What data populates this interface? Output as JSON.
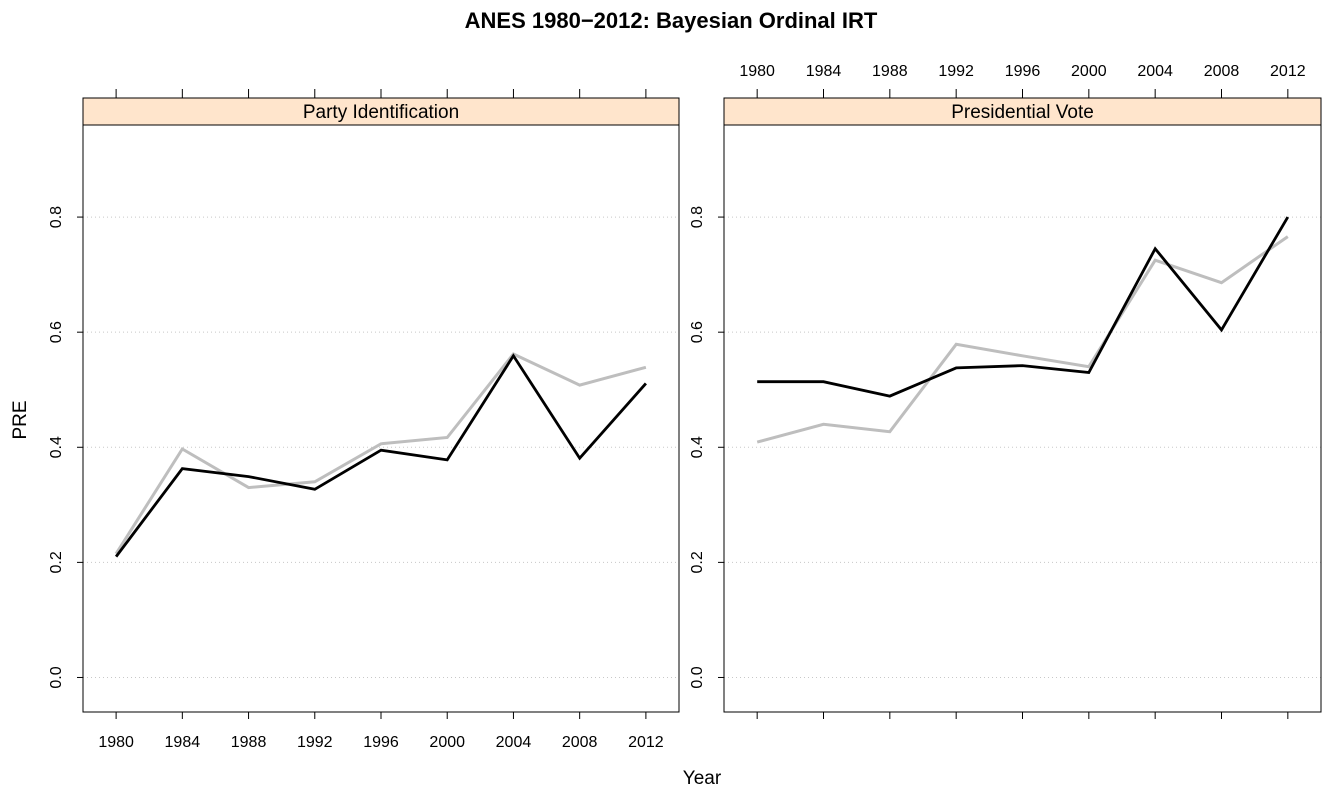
{
  "chart_data": {
    "type": "line",
    "title": "ANES 1980−2012: Bayesian Ordinal IRT",
    "xlabel": "Year",
    "ylabel": "PRE",
    "x": [
      1980,
      1984,
      1988,
      1992,
      1996,
      2000,
      2004,
      2008,
      2012
    ],
    "x_tick_labels": [
      "1980",
      "1984",
      "1988",
      "1992",
      "1996",
      "2000",
      "2004",
      "2008",
      "2012"
    ],
    "y_tick_labels": [
      "0.0",
      "0.2",
      "0.4",
      "0.6",
      "0.8"
    ],
    "yticks": [
      0.0,
      0.2,
      0.4,
      0.6,
      0.8
    ],
    "ylim": [
      -0.06,
      0.96
    ],
    "xlim": [
      1978,
      2014
    ],
    "grid": "horizontal dotted",
    "colors": {
      "black_series": "#000000",
      "grey_series": "#bebebe",
      "strip": "#ffe5cc"
    },
    "panels": [
      {
        "strip_label": "Party Identification",
        "series": [
          {
            "color": "#000000",
            "values": [
              0.21,
              0.363,
              0.349,
              0.327,
              0.395,
              0.378,
              0.559,
              0.381,
              0.511
            ]
          },
          {
            "color": "#bebebe",
            "values": [
              0.215,
              0.397,
              0.33,
              0.34,
              0.406,
              0.417,
              0.562,
              0.508,
              0.539
            ]
          }
        ]
      },
      {
        "strip_label": "Presidential Vote",
        "series": [
          {
            "color": "#000000",
            "values": [
              0.514,
              0.514,
              0.489,
              0.538,
              0.542,
              0.53,
              0.745,
              0.604,
              0.8
            ]
          },
          {
            "color": "#bebebe",
            "values": [
              0.409,
              0.44,
              0.427,
              0.579,
              0.559,
              0.54,
              0.725,
              0.686,
              0.766
            ]
          }
        ]
      }
    ]
  }
}
